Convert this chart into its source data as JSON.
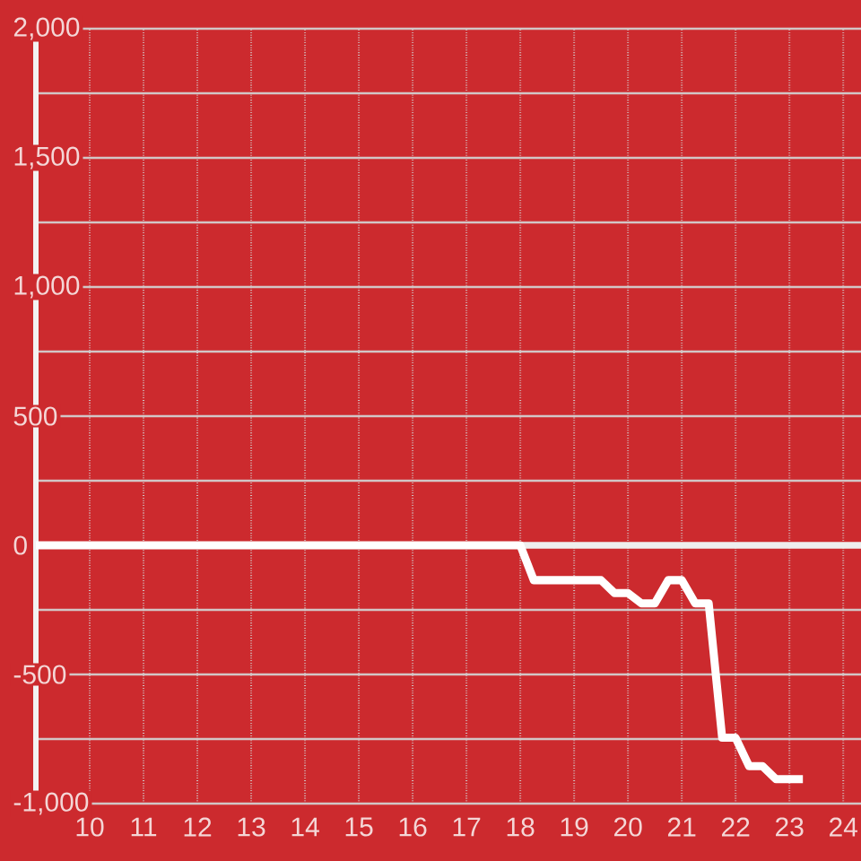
{
  "chart_data": {
    "type": "line",
    "x": [
      9,
      18,
      18.25,
      18.5,
      18.75,
      19,
      19.25,
      19.5,
      19.75,
      20,
      20.25,
      20.5,
      20.75,
      21,
      21.25,
      21.5,
      21.75,
      22,
      22.25,
      22.5,
      22.75,
      23,
      23.25
    ],
    "values": [
      0,
      0,
      -135,
      -135,
      -135,
      -135,
      -135,
      -135,
      -185,
      -185,
      -225,
      -225,
      -135,
      -135,
      -225,
      -225,
      -745,
      -745,
      -855,
      -855,
      -905,
      -905,
      -905
    ],
    "color": "#ffffff",
    "line_style": "solid",
    "xlim": [
      9,
      24.33
    ],
    "xticks": [
      10,
      11,
      12,
      13,
      14,
      15,
      16,
      17,
      18,
      19,
      20,
      21,
      22,
      23,
      24
    ],
    "ylim": [
      -1000,
      2000
    ],
    "yticks": [
      {
        "value": -1000,
        "label": "-1,000"
      },
      {
        "value": -750,
        "label": null
      },
      -500,
      {
        "value": -250,
        "label": null
      },
      0,
      {
        "value": 250,
        "label": null
      },
      500,
      {
        "value": 750,
        "label": null
      },
      {
        "value": 1000,
        "label": "1,000"
      },
      {
        "value": 1250,
        "label": null
      },
      {
        "value": 1500,
        "label": "1,500"
      },
      {
        "value": 1750,
        "label": null
      },
      {
        "value": 2000,
        "label": "2,000"
      }
    ],
    "grid": true,
    "ref_lines": [
      {
        "axis": "y",
        "value": 0,
        "color": "#eeeeee"
      }
    ]
  }
}
